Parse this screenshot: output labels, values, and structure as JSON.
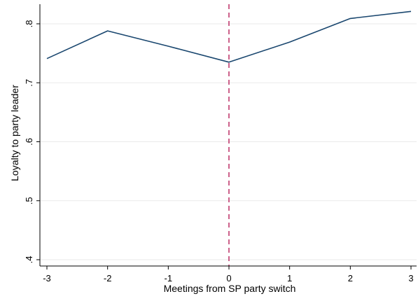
{
  "chart_data": {
    "type": "line",
    "xlabel": "Meetings from SP party switch",
    "ylabel": "Loyalty to party leader",
    "x": [
      -3,
      -2,
      -1,
      0,
      1,
      2,
      3
    ],
    "series": [
      {
        "values": [
          0.741,
          0.788,
          0.762,
          0.735,
          0.769,
          0.809,
          0.821
        ]
      }
    ],
    "xlim": [
      -3,
      3
    ],
    "ylim": [
      0.4,
      0.8
    ],
    "xticks": [
      -3,
      -2,
      -1,
      0,
      1,
      2,
      3
    ],
    "xtick_labels": [
      "-3",
      "-2",
      "-1",
      "0",
      "1",
      "2",
      "3"
    ],
    "yticks": [
      0.4,
      0.5,
      0.6,
      0.7,
      0.8
    ],
    "ytick_labels": [
      ".4",
      ".5",
      ".6",
      ".7",
      ".8"
    ],
    "reference_line": {
      "axis": "x",
      "value": 0,
      "style": "dashed"
    },
    "grid": "horizontal",
    "legend": "none",
    "colors": {
      "series": "#1a476f",
      "reference_line": "#c03a6e",
      "grid": "#eaeaea",
      "axis": "#000000"
    }
  }
}
